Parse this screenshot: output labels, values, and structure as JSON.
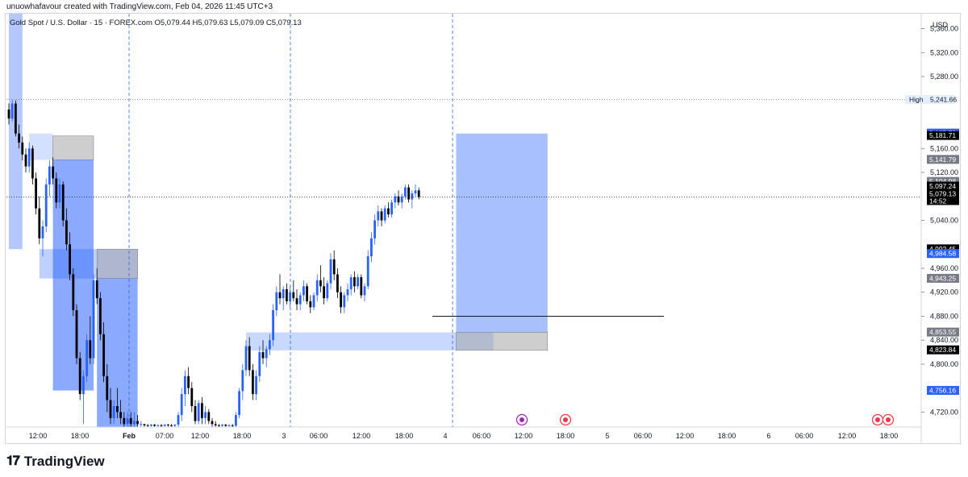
{
  "header": {
    "note": "unuowhafavour created with TradingView.com, Feb 04, 2026 11:45 UTC+3"
  },
  "symbol": {
    "title": "Gold Spot / U.S. Dollar · 15 · FOREX.com",
    "ohlc": "O5,079.44 H5,079.63 L5,079.09 C5,079.13"
  },
  "footer": {
    "brand": "TradingView",
    "logo_icon": "tradingview-logo-icon"
  },
  "colors": {
    "up": "#2962ff",
    "down": "#000000",
    "zone_blue": "#2962ff",
    "zone_gray": "#9e9e9e",
    "session_line": "#2962ff"
  },
  "chart_data": {
    "type": "candlestick",
    "currency": "USD",
    "y_ticks": [
      "5,360.00",
      "5,320.00",
      "5,280.00",
      "5,160.00",
      "5,120.00",
      "5,040.00",
      "4,960.00",
      "4,920.00",
      "4,880.00",
      "4,840.00",
      "4,800.00",
      "4,720.00"
    ],
    "y_range": [
      4695,
      5385
    ],
    "x_ticks": [
      "12:00",
      "18:00",
      "Feb",
      "07:00",
      "12:00",
      "18:00",
      "3",
      "06:00",
      "12:00",
      "18:00",
      "4",
      "06:00",
      "12:00",
      "18:00",
      "5",
      "06:00",
      "12:00",
      "18:00",
      "6",
      "06:00",
      "12:00",
      "18:00"
    ],
    "price_labels": [
      {
        "label": "High",
        "value": "5,241.66",
        "style": "high"
      },
      {
        "value": "5,185.72",
        "style": "blue"
      },
      {
        "value": "5,181.71",
        "style": "dark"
      },
      {
        "value": "5,141.79",
        "style": "gray"
      },
      {
        "value": "5,104.98",
        "style": "gray"
      },
      {
        "value": "5,097.24",
        "style": "dark"
      },
      {
        "value": "5,079.13",
        "sub": "14:52",
        "style": "dark"
      },
      {
        "value": "4,992.45",
        "style": "dark"
      },
      {
        "value": "4,984.58",
        "style": "blue"
      },
      {
        "value": "4,943.25",
        "style": "gray"
      },
      {
        "value": "4,853.55",
        "style": "gray"
      },
      {
        "value": "4,823.84",
        "style": "dark"
      },
      {
        "value": "4,756.16",
        "style": "blue"
      }
    ],
    "last_price": 5079.13,
    "session_high": 5241.66,
    "horizontal_line": 4880,
    "zones": [
      {
        "color": "blue",
        "from_bar": 0,
        "to_bar": 4,
        "top": 5385,
        "bottom": 4992,
        "opacity": 0.35
      },
      {
        "color": "blue",
        "from_bar": 6,
        "to_bar": 13,
        "top": 5185,
        "bottom": 5141,
        "opacity": 0.2
      },
      {
        "color": "gray",
        "from_bar": 13,
        "to_bar": 25,
        "top": 5181,
        "bottom": 5141,
        "opacity": 0.5
      },
      {
        "color": "blue",
        "from_bar": 13,
        "to_bar": 25,
        "top": 5141,
        "bottom": 4756,
        "opacity": 0.55
      },
      {
        "color": "blue",
        "from_bar": 9,
        "to_bar": 38,
        "top": 4992,
        "bottom": 4943,
        "opacity": 0.3
      },
      {
        "color": "gray",
        "from_bar": 26,
        "to_bar": 38,
        "top": 4992,
        "bottom": 4943,
        "opacity": 0.5
      },
      {
        "color": "blue",
        "from_bar": 26,
        "to_bar": 38,
        "top": 4943,
        "bottom": 4695,
        "opacity": 0.55
      },
      {
        "color": "blue",
        "from_bar": 70,
        "to_bar": 143,
        "top": 4853,
        "bottom": 4823,
        "opacity": 0.25
      },
      {
        "color": "blue",
        "from_bar": 132,
        "to_bar": 159,
        "top": 5185,
        "bottom": 4853,
        "opacity": 0.4
      },
      {
        "color": "gray",
        "from_bar": 132,
        "to_bar": 159,
        "top": 4853,
        "bottom": 4823,
        "opacity": 0.5
      }
    ],
    "candles": [
      [
        5225,
        5235,
        5200,
        5210
      ],
      [
        5210,
        5241,
        5205,
        5235
      ],
      [
        5235,
        5240,
        5180,
        5185
      ],
      [
        5185,
        5200,
        5160,
        5170
      ],
      [
        5170,
        5180,
        5140,
        5150
      ],
      [
        5150,
        5160,
        5120,
        5130
      ],
      [
        5130,
        5170,
        5120,
        5160
      ],
      [
        5160,
        5165,
        5100,
        5110
      ],
      [
        5110,
        5120,
        5050,
        5060
      ],
      [
        5060,
        5080,
        5000,
        5010
      ],
      [
        5010,
        5040,
        4980,
        5030
      ],
      [
        5030,
        5110,
        5020,
        5100
      ],
      [
        5100,
        5140,
        5080,
        5130
      ],
      [
        5130,
        5145,
        5100,
        5110
      ],
      [
        5110,
        5120,
        5060,
        5070
      ],
      [
        5070,
        5110,
        5060,
        5100
      ],
      [
        5100,
        5105,
        5030,
        5040
      ],
      [
        5040,
        5060,
        4990,
        5000
      ],
      [
        5000,
        5020,
        4940,
        4950
      ],
      [
        4950,
        4960,
        4880,
        4890
      ],
      [
        4890,
        4900,
        4800,
        4810
      ],
      [
        4810,
        4820,
        4740,
        4750
      ],
      [
        4750,
        4790,
        4700,
        4780
      ],
      [
        4780,
        4850,
        4770,
        4840
      ],
      [
        4840,
        4880,
        4800,
        4810
      ],
      [
        4810,
        4950,
        4800,
        4940
      ],
      [
        4940,
        4960,
        4900,
        4910
      ],
      [
        4910,
        4920,
        4840,
        4850
      ],
      [
        4850,
        4870,
        4770,
        4780
      ],
      [
        4780,
        4800,
        4720,
        4740
      ],
      [
        4740,
        4760,
        4700,
        4710
      ],
      [
        4710,
        4740,
        4700,
        4730
      ],
      [
        4730,
        4760,
        4710,
        4720
      ],
      [
        4720,
        4740,
        4700,
        4710
      ],
      [
        4710,
        4720,
        4695,
        4700
      ],
      [
        4700,
        4720,
        4695,
        4710
      ],
      [
        4710,
        4720,
        4695,
        4700
      ],
      [
        4700,
        4720,
        4695,
        4705
      ],
      [
        4705,
        4715,
        4695,
        4700
      ],
      [
        4700,
        4705,
        4695,
        4700
      ],
      [
        4700,
        4700,
        4695,
        4698
      ],
      [
        4698,
        4700,
        4695,
        4697
      ],
      [
        4697,
        4700,
        4695,
        4699
      ],
      [
        4699,
        4700,
        4695,
        4697
      ],
      [
        4697,
        4700,
        4695,
        4698
      ],
      [
        4698,
        4700,
        4695,
        4697
      ],
      [
        4697,
        4700,
        4695,
        4699
      ],
      [
        4699,
        4700,
        4695,
        4698
      ],
      [
        4698,
        4700,
        4695,
        4697
      ],
      [
        4697,
        4700,
        4695,
        4699
      ],
      [
        4699,
        4720,
        4695,
        4715
      ],
      [
        4715,
        4760,
        4705,
        4750
      ],
      [
        4750,
        4790,
        4730,
        4780
      ],
      [
        4780,
        4795,
        4750,
        4760
      ],
      [
        4760,
        4770,
        4720,
        4730
      ],
      [
        4730,
        4740,
        4700,
        4705
      ],
      [
        4705,
        4740,
        4700,
        4735
      ],
      [
        4735,
        4745,
        4700,
        4710
      ],
      [
        4710,
        4730,
        4700,
        4720
      ],
      [
        4720,
        4725,
        4700,
        4705
      ],
      [
        4705,
        4710,
        4695,
        4700
      ],
      [
        4700,
        4705,
        4695,
        4698
      ],
      [
        4698,
        4700,
        4695,
        4697
      ],
      [
        4697,
        4700,
        4695,
        4699
      ],
      [
        4699,
        4700,
        4695,
        4697
      ],
      [
        4697,
        4700,
        4695,
        4698
      ],
      [
        4698,
        4700,
        4695,
        4697
      ],
      [
        4697,
        4720,
        4695,
        4715
      ],
      [
        4715,
        4760,
        4710,
        4755
      ],
      [
        4755,
        4800,
        4740,
        4790
      ],
      [
        4790,
        4840,
        4780,
        4830
      ],
      [
        4830,
        4845,
        4780,
        4790
      ],
      [
        4790,
        4800,
        4740,
        4750
      ],
      [
        4750,
        4790,
        4740,
        4780
      ],
      [
        4780,
        4830,
        4770,
        4820
      ],
      [
        4820,
        4840,
        4800,
        4810
      ],
      [
        4810,
        4830,
        4795,
        4825
      ],
      [
        4825,
        4850,
        4815,
        4840
      ],
      [
        4840,
        4900,
        4830,
        4890
      ],
      [
        4890,
        4930,
        4880,
        4920
      ],
      [
        4920,
        4950,
        4900,
        4910
      ],
      [
        4910,
        4930,
        4890,
        4925
      ],
      [
        4925,
        4935,
        4900,
        4905
      ],
      [
        4905,
        4930,
        4895,
        4920
      ],
      [
        4920,
        4940,
        4905,
        4910
      ],
      [
        4910,
        4925,
        4890,
        4900
      ],
      [
        4900,
        4920,
        4890,
        4915
      ],
      [
        4915,
        4940,
        4905,
        4930
      ],
      [
        4930,
        4935,
        4900,
        4905
      ],
      [
        4905,
        4915,
        4885,
        4895
      ],
      [
        4895,
        4920,
        4890,
        4915
      ],
      [
        4915,
        4950,
        4905,
        4940
      ],
      [
        4940,
        4965,
        4920,
        4930
      ],
      [
        4930,
        4945,
        4900,
        4910
      ],
      [
        4910,
        4940,
        4905,
        4935
      ],
      [
        4935,
        4985,
        4925,
        4975
      ],
      [
        4975,
        4990,
        4940,
        4950
      ],
      [
        4950,
        4960,
        4910,
        4920
      ],
      [
        4920,
        4930,
        4885,
        4895
      ],
      [
        4895,
        4920,
        4885,
        4915
      ],
      [
        4915,
        4935,
        4905,
        4925
      ],
      [
        4925,
        4950,
        4915,
        4945
      ],
      [
        4945,
        4955,
        4920,
        4930
      ],
      [
        4930,
        4950,
        4925,
        4945
      ],
      [
        4945,
        4950,
        4910,
        4915
      ],
      [
        4915,
        4935,
        4905,
        4930
      ],
      [
        4930,
        4990,
        4925,
        4980
      ],
      [
        4980,
        5020,
        4970,
        5010
      ],
      [
        5010,
        5050,
        5000,
        5040
      ],
      [
        5040,
        5065,
        5030,
        5055
      ],
      [
        5055,
        5060,
        5030,
        5040
      ],
      [
        5040,
        5065,
        5035,
        5060
      ],
      [
        5060,
        5070,
        5045,
        5050
      ],
      [
        5050,
        5075,
        5045,
        5070
      ],
      [
        5070,
        5085,
        5060,
        5080
      ],
      [
        5080,
        5090,
        5065,
        5070
      ],
      [
        5070,
        5085,
        5060,
        5080
      ],
      [
        5080,
        5100,
        5075,
        5095
      ],
      [
        5095,
        5100,
        5070,
        5075
      ],
      [
        5075,
        5090,
        5060,
        5085
      ],
      [
        5085,
        5100,
        5080,
        5090
      ],
      [
        5090,
        5095,
        5075,
        5079
      ]
    ]
  }
}
